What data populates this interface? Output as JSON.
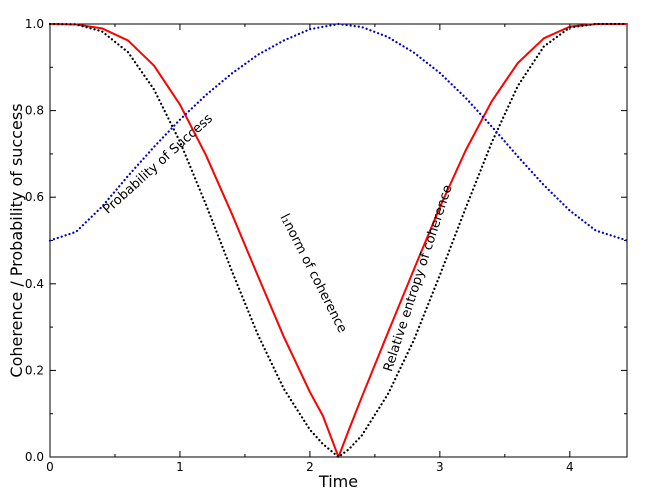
{
  "chart_data": {
    "type": "line",
    "title": "",
    "xlabel": "Time",
    "ylabel": "Coherence / Probability of success",
    "xlim": [
      0,
      4.44
    ],
    "ylim": [
      0,
      1
    ],
    "xticks": [
      "0",
      "1",
      "2",
      "3",
      "4"
    ],
    "yticks": [
      "0.0",
      "0.2",
      "0.4",
      "0.6",
      "0.8",
      "1.0"
    ],
    "grid": false,
    "legend": "none",
    "series": [
      {
        "name": "l1 norm of coherence",
        "color": "#ff0000",
        "style": "solid",
        "x": [
          0,
          0.2,
          0.4,
          0.6,
          0.8,
          1.0,
          1.2,
          1.4,
          1.6,
          1.8,
          2.0,
          2.1,
          2.22,
          2.3,
          2.4,
          2.6,
          2.8,
          3.0,
          3.2,
          3.4,
          3.6,
          3.8,
          4.0,
          4.2,
          4.44
        ],
        "y": [
          1.0,
          0.999,
          0.99,
          0.962,
          0.904,
          0.814,
          0.697,
          0.561,
          0.418,
          0.277,
          0.15,
          0.095,
          0.0,
          0.063,
          0.139,
          0.287,
          0.433,
          0.577,
          0.709,
          0.822,
          0.91,
          0.967,
          0.994,
          1.0,
          1.0
        ]
      },
      {
        "name": "Relative entropy of coherence",
        "color": "#000000",
        "style": "dotted",
        "x": [
          0,
          0.2,
          0.4,
          0.6,
          0.8,
          1.0,
          1.2,
          1.4,
          1.6,
          1.8,
          2.0,
          2.1,
          2.22,
          2.3,
          2.4,
          2.6,
          2.8,
          3.0,
          3.2,
          3.4,
          3.6,
          3.8,
          4.0,
          4.2,
          4.44
        ],
        "y": [
          1.0,
          0.999,
          0.983,
          0.935,
          0.849,
          0.728,
          0.583,
          0.429,
          0.282,
          0.157,
          0.063,
          0.03,
          0.0,
          0.018,
          0.05,
          0.145,
          0.27,
          0.42,
          0.576,
          0.727,
          0.857,
          0.948,
          0.992,
          1.0,
          1.0
        ]
      },
      {
        "name": "Probability of Success",
        "color": "#0000cc",
        "style": "dotted",
        "x": [
          0,
          0.2,
          0.4,
          0.6,
          0.8,
          1.0,
          1.2,
          1.4,
          1.6,
          1.8,
          2.0,
          2.22,
          2.4,
          2.6,
          2.8,
          3.0,
          3.2,
          3.4,
          3.6,
          3.8,
          4.0,
          4.2,
          4.44
        ],
        "y": [
          0.5,
          0.52,
          0.578,
          0.649,
          0.716,
          0.779,
          0.836,
          0.886,
          0.929,
          0.962,
          0.988,
          1.0,
          0.993,
          0.97,
          0.934,
          0.887,
          0.829,
          0.763,
          0.694,
          0.628,
          0.569,
          0.523,
          0.5
        ]
      }
    ],
    "annotations": [
      {
        "label": "Probability of Success",
        "x": 0.85,
        "y": 0.67,
        "angle": -42
      },
      {
        "label": "l₁norm of coherence",
        "x": 2.0,
        "y": 0.42,
        "angle": 63
      },
      {
        "label": "Relative entropy of coherence",
        "x": 2.86,
        "y": 0.41,
        "angle": -72
      }
    ]
  }
}
